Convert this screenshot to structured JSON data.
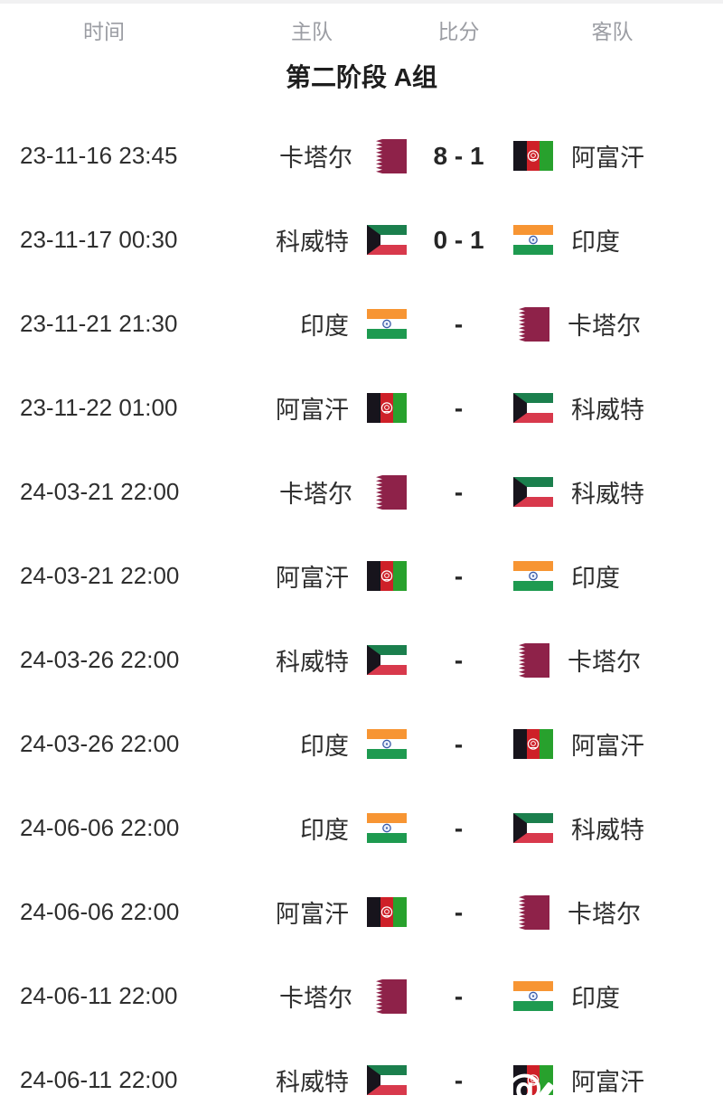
{
  "header": {
    "columns": [
      "时间",
      "主队",
      "比分",
      "客队"
    ]
  },
  "section_title": "第二阶段 A组",
  "colors": {
    "qatar_maroon": "#8E2249",
    "kuwait_green": "#1B7F4D",
    "kuwait_red": "#D8394C",
    "kuwait_black": "#17141C",
    "india_saffron": "#F79533",
    "india_green": "#1E9A50",
    "india_navy": "#3A5BA9",
    "afghan_black": "#17141C",
    "afghan_red": "#CE2028",
    "afghan_green": "#28A12D",
    "header_gray": "#9b9da3",
    "text_dark": "#2e2e2e"
  },
  "matches": [
    {
      "time": "23-11-16 23:45",
      "home": "卡塔尔",
      "home_flag": "qatar",
      "score": "8 - 1",
      "away": "阿富汗",
      "away_flag": "afghanistan"
    },
    {
      "time": "23-11-17 00:30",
      "home": "科威特",
      "home_flag": "kuwait",
      "score": "0 - 1",
      "away": "印度",
      "away_flag": "india"
    },
    {
      "time": "23-11-21 21:30",
      "home": "印度",
      "home_flag": "india",
      "score": "-",
      "away": "卡塔尔",
      "away_flag": "qatar"
    },
    {
      "time": "23-11-22 01:00",
      "home": "阿富汗",
      "home_flag": "afghanistan",
      "score": "-",
      "away": "科威特",
      "away_flag": "kuwait"
    },
    {
      "time": "24-03-21 22:00",
      "home": "卡塔尔",
      "home_flag": "qatar",
      "score": "-",
      "away": "科威特",
      "away_flag": "kuwait"
    },
    {
      "time": "24-03-21 22:00",
      "home": "阿富汗",
      "home_flag": "afghanistan",
      "score": "-",
      "away": "印度",
      "away_flag": "india"
    },
    {
      "time": "24-03-26 22:00",
      "home": "科威特",
      "home_flag": "kuwait",
      "score": "-",
      "away": "卡塔尔",
      "away_flag": "qatar"
    },
    {
      "time": "24-03-26 22:00",
      "home": "印度",
      "home_flag": "india",
      "score": "-",
      "away": "阿富汗",
      "away_flag": "afghanistan"
    },
    {
      "time": "24-06-06 22:00",
      "home": "印度",
      "home_flag": "india",
      "score": "-",
      "away": "科威特",
      "away_flag": "kuwait"
    },
    {
      "time": "24-06-06 22:00",
      "home": "阿富汗",
      "home_flag": "afghanistan",
      "score": "-",
      "away": "卡塔尔",
      "away_flag": "qatar"
    },
    {
      "time": "24-06-11 22:00",
      "home": "卡塔尔",
      "home_flag": "qatar",
      "score": "-",
      "away": "印度",
      "away_flag": "india"
    },
    {
      "time": "24-06-11 22:00",
      "home": "科威特",
      "home_flag": "kuwait",
      "score": "-",
      "away": "阿富汗",
      "away_flag": "afghanistan",
      "watermark": true
    }
  ],
  "watermark": {
    "symbol": "@"
  }
}
